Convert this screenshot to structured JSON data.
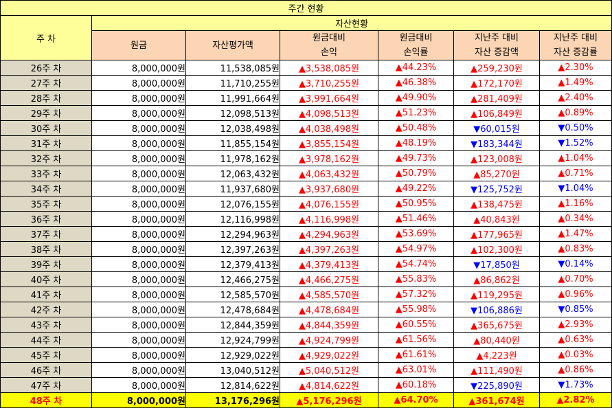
{
  "title": "주간 현황",
  "headers": {
    "week": "주 차",
    "asset_status": "자산현황",
    "principal": "원금",
    "asset_value": "자산평가액",
    "pnl_line1": "원금대비",
    "pnl_line2": "손익",
    "rate_line1": "원금대비",
    "rate_line2": "손익률",
    "wow_amt_line1": "지난주 대비",
    "wow_amt_line2": "자산 증감액",
    "wow_rate_line1": "지난주 대비",
    "wow_rate_line2": "자산 증감률"
  },
  "colors": {
    "up": "#ff0000",
    "down": "#0000ff",
    "title_bg": "#ffff9a",
    "header_bg": "#fcd5b4",
    "week_bg": "#ddd9c4",
    "current_bg": "#ffff00"
  },
  "rows": [
    {
      "week": "26주 차",
      "principal": "8,000,000원",
      "asset": "11,538,085원",
      "pnl": "▲3,538,085원",
      "rate": "▲44.23%",
      "wow": "▲259,230원",
      "wow_rate": "▲2.30%",
      "dir": "up"
    },
    {
      "week": "27주 차",
      "principal": "8,000,000원",
      "asset": "11,710,255원",
      "pnl": "▲3,710,255원",
      "rate": "▲46.38%",
      "wow": "▲172,170원",
      "wow_rate": "▲1.49%",
      "dir": "up"
    },
    {
      "week": "28주 차",
      "principal": "8,000,000원",
      "asset": "11,991,664원",
      "pnl": "▲3,991,664원",
      "rate": "▲49.90%",
      "wow": "▲281,409원",
      "wow_rate": "▲2.40%",
      "dir": "up"
    },
    {
      "week": "29주 차",
      "principal": "8,000,000원",
      "asset": "12,098,513원",
      "pnl": "▲4,098,513원",
      "rate": "▲51.23%",
      "wow": "▲106,849원",
      "wow_rate": "▲0.89%",
      "dir": "up"
    },
    {
      "week": "30주 차",
      "principal": "8,000,000원",
      "asset": "12,038,498원",
      "pnl": "▲4,038,498원",
      "rate": "▲50.48%",
      "wow": "▼60,015원",
      "wow_rate": "▼0.50%",
      "dir": "down"
    },
    {
      "week": "31주 차",
      "principal": "8,000,000원",
      "asset": "11,855,154원",
      "pnl": "▲3,855,154원",
      "rate": "▲48.19%",
      "wow": "▼183,344원",
      "wow_rate": "▼1.52%",
      "dir": "down"
    },
    {
      "week": "32주 차",
      "principal": "8,000,000원",
      "asset": "11,978,162원",
      "pnl": "▲3,978,162원",
      "rate": "▲49.73%",
      "wow": "▲123,008원",
      "wow_rate": "▲1.04%",
      "dir": "up"
    },
    {
      "week": "33주 차",
      "principal": "8,000,000원",
      "asset": "12,063,432원",
      "pnl": "▲4,063,432원",
      "rate": "▲50.79%",
      "wow": "▲85,270원",
      "wow_rate": "▲0.71%",
      "dir": "up"
    },
    {
      "week": "34주 차",
      "principal": "8,000,000원",
      "asset": "11,937,680원",
      "pnl": "▲3,937,680원",
      "rate": "▲49.22%",
      "wow": "▼125,752원",
      "wow_rate": "▼1.04%",
      "dir": "down"
    },
    {
      "week": "35주 차",
      "principal": "8,000,000원",
      "asset": "12,076,155원",
      "pnl": "▲4,076,155원",
      "rate": "▲50.95%",
      "wow": "▲138,475원",
      "wow_rate": "▲1.16%",
      "dir": "up"
    },
    {
      "week": "36주 차",
      "principal": "8,000,000원",
      "asset": "12,116,998원",
      "pnl": "▲4,116,998원",
      "rate": "▲51.46%",
      "wow": "▲40,843원",
      "wow_rate": "▲0.34%",
      "dir": "up"
    },
    {
      "week": "37주 차",
      "principal": "8,000,000원",
      "asset": "12,294,963원",
      "pnl": "▲4,294,963원",
      "rate": "▲53.69%",
      "wow": "▲177,965원",
      "wow_rate": "▲1.47%",
      "dir": "up"
    },
    {
      "week": "38주 차",
      "principal": "8,000,000원",
      "asset": "12,397,263원",
      "pnl": "▲4,397,263원",
      "rate": "▲54.97%",
      "wow": "▲102,300원",
      "wow_rate": "▲0.83%",
      "dir": "up"
    },
    {
      "week": "39주 차",
      "principal": "8,000,000원",
      "asset": "12,379,413원",
      "pnl": "▲4,379,413원",
      "rate": "▲54.74%",
      "wow": "▼17,850원",
      "wow_rate": "▼0.14%",
      "dir": "down"
    },
    {
      "week": "40주 차",
      "principal": "8,000,000원",
      "asset": "12,466,275원",
      "pnl": "▲4,466,275원",
      "rate": "▲55.83%",
      "wow": "▲86,862원",
      "wow_rate": "▲0.70%",
      "dir": "up"
    },
    {
      "week": "41주 차",
      "principal": "8,000,000원",
      "asset": "12,585,570원",
      "pnl": "▲4,585,570원",
      "rate": "▲57.32%",
      "wow": "▲119,295원",
      "wow_rate": "▲0.96%",
      "dir": "up"
    },
    {
      "week": "42주 차",
      "principal": "8,000,000원",
      "asset": "12,478,684원",
      "pnl": "▲4,478,684원",
      "rate": "▲55.98%",
      "wow": "▼106,886원",
      "wow_rate": "▼0.85%",
      "dir": "down"
    },
    {
      "week": "43주 차",
      "principal": "8,000,000원",
      "asset": "12,844,359원",
      "pnl": "▲4,844,359원",
      "rate": "▲60.55%",
      "wow": "▲365,675원",
      "wow_rate": "▲2.93%",
      "dir": "up"
    },
    {
      "week": "44주 차",
      "principal": "8,000,000원",
      "asset": "12,924,799원",
      "pnl": "▲4,924,799원",
      "rate": "▲61.56%",
      "wow": "▲80,440원",
      "wow_rate": "▲0.63%",
      "dir": "up"
    },
    {
      "week": "45주 차",
      "principal": "8,000,000원",
      "asset": "12,929,022원",
      "pnl": "▲4,929,022원",
      "rate": "▲61.61%",
      "wow": "▲4,223원",
      "wow_rate": "▲0.03%",
      "dir": "up"
    },
    {
      "week": "46주 차",
      "principal": "8,000,000원",
      "asset": "13,040,512원",
      "pnl": "▲5,040,512원",
      "rate": "▲63.01%",
      "wow": "▲111,490원",
      "wow_rate": "▲0.86%",
      "dir": "up"
    },
    {
      "week": "47주 차",
      "principal": "8,000,000원",
      "asset": "12,814,622원",
      "pnl": "▲4,814,622원",
      "rate": "▲60.18%",
      "wow": "▼225,890원",
      "wow_rate": "▼1.73%",
      "dir": "down"
    },
    {
      "week": "48주 차",
      "principal": "8,000,000원",
      "asset": "13,176,296원",
      "pnl": "▲5,176,296원",
      "rate": "▲64.70%",
      "wow": "▲361,674원",
      "wow_rate": "▲2.82%",
      "dir": "up",
      "current": true
    }
  ]
}
